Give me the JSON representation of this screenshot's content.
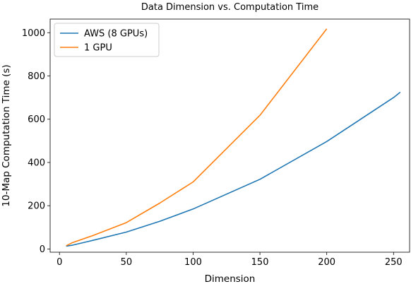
{
  "chart_data": {
    "type": "line",
    "title": "Data Dimension vs. Computation Time",
    "xlabel": "Dimension",
    "ylabel": "10-Map Computation Time (s)",
    "xlim": [
      -7,
      262
    ],
    "ylim": [
      -15,
      1063
    ],
    "xticks": [
      0,
      50,
      100,
      150,
      200,
      250
    ],
    "yticks": [
      0,
      200,
      400,
      600,
      800,
      1000
    ],
    "grid": false,
    "legend_position": "top-left",
    "series": [
      {
        "name": "AWS (8 GPUs)",
        "color": "#1f77b4",
        "x": [
          5,
          10,
          25,
          50,
          75,
          100,
          150,
          200,
          250,
          255
        ],
        "y": [
          13,
          18,
          40,
          78,
          128,
          185,
          322,
          497,
          700,
          725
        ]
      },
      {
        "name": "1 GPU",
        "color": "#ff7f0e",
        "x": [
          5,
          10,
          25,
          50,
          75,
          100,
          150,
          200
        ],
        "y": [
          15,
          30,
          62,
          122,
          212,
          310,
          618,
          1018
        ]
      }
    ]
  }
}
